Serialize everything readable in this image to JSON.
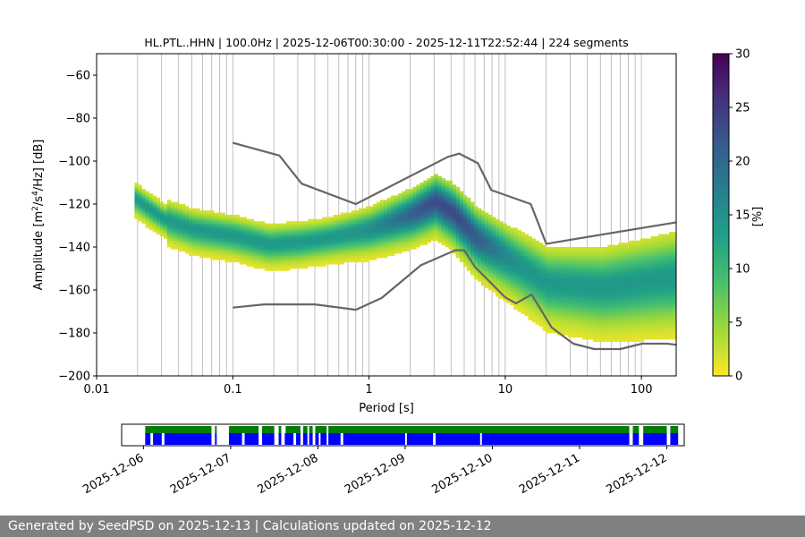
{
  "footer": {
    "text": "Generated by SeedPSD on 2025-12-13 | Calculations updated on 2025-12-12"
  },
  "chart_data": [
    {
      "type": "heatmap",
      "title": "HL.PTL..HHN | 100.0Hz | 2025-12-06T00:30:00 - 2025-12-11T22:52:44 | 224 segments",
      "xlabel": "Period [s]",
      "ylabel_parts": {
        "pre": "Amplitude [m",
        "exp1": "2",
        "mid": "/s",
        "exp2": "4",
        "post": "/Hz] [dB]"
      },
      "xscale": "log",
      "xlim": [
        0.01,
        180
      ],
      "ylim": [
        -200,
        -50
      ],
      "xticks": [
        {
          "value": 0.01,
          "label": "0.01"
        },
        {
          "value": 0.1,
          "label": "0.1"
        },
        {
          "value": 1,
          "label": "1"
        },
        {
          "value": 10,
          "label": "10"
        },
        {
          "value": 100,
          "label": "100"
        }
      ],
      "yticks": [
        {
          "value": -60,
          "label": "−60"
        },
        {
          "value": -80,
          "label": "−80"
        },
        {
          "value": -100,
          "label": "−100"
        },
        {
          "value": -120,
          "label": "−120"
        },
        {
          "value": -140,
          "label": "−140"
        },
        {
          "value": -160,
          "label": "−160"
        },
        {
          "value": -180,
          "label": "−180"
        },
        {
          "value": -200,
          "label": "−200"
        }
      ],
      "grid": "vertical, log minor",
      "colorbar": {
        "label": "[%]",
        "range": [
          0,
          30
        ],
        "ticks": [
          {
            "value": 0,
            "label": "0"
          },
          {
            "value": 5,
            "label": "5"
          },
          {
            "value": 10,
            "label": "10"
          },
          {
            "value": 15,
            "label": "15"
          },
          {
            "value": 20,
            "label": "20"
          },
          {
            "value": 25,
            "label": "25"
          },
          {
            "value": 30,
            "label": "30"
          }
        ],
        "colormap": "viridis_r",
        "stops": [
          "#fde725",
          "#a0da39",
          "#4ac16d",
          "#1fa187",
          "#277f8e",
          "#365c8d",
          "#46327e",
          "#440154"
        ]
      },
      "reference_curves": [
        {
          "name": "upper",
          "color": "#666666",
          "points": [
            [
              0.1,
              -91.5
            ],
            [
              0.22,
              -97.4
            ],
            [
              0.32,
              -110.5
            ],
            [
              0.8,
              -120
            ],
            [
              3.8,
              -98
            ],
            [
              4.6,
              -96.5
            ],
            [
              6.3,
              -101
            ],
            [
              7.9,
              -113.5
            ],
            [
              15.4,
              -120
            ],
            [
              20,
              -138.5
            ],
            [
              180,
              -128.5
            ]
          ]
        },
        {
          "name": "lower",
          "color": "#666666",
          "points": [
            [
              0.1,
              -168.2
            ],
            [
              0.17,
              -166.7
            ],
            [
              0.4,
              -166.7
            ],
            [
              0.8,
              -169.2
            ],
            [
              1.24,
              -163.7
            ],
            [
              2.4,
              -148.5
            ],
            [
              4.3,
              -141.5
            ],
            [
              5.0,
              -141.5
            ],
            [
              6.0,
              -149.3
            ],
            [
              10,
              -163.4
            ],
            [
              12,
              -166.2
            ],
            [
              15.6,
              -162.1
            ],
            [
              21.9,
              -177.4
            ],
            [
              31.6,
              -185
            ],
            [
              45,
              -187.5
            ],
            [
              70,
              -187.5
            ],
            [
              101,
              -185
            ],
            [
              154,
              -185
            ],
            [
              180,
              -185.5
            ]
          ]
        }
      ],
      "psd_mode": {
        "description_values": "dominant noise level in dB vs period in s",
        "period_range": [
          0.019,
          180
        ],
        "points": [
          [
            0.019,
            -118
          ],
          [
            0.03,
            -127
          ],
          [
            0.05,
            -132
          ],
          [
            0.1,
            -135
          ],
          [
            0.18,
            -139
          ],
          [
            0.3,
            -138
          ],
          [
            0.5,
            -136
          ],
          [
            1,
            -132
          ],
          [
            2,
            -125
          ],
          [
            3,
            -119
          ],
          [
            4,
            -124
          ],
          [
            6,
            -136
          ],
          [
            10,
            -145
          ],
          [
            20,
            -157
          ],
          [
            50,
            -159
          ],
          [
            180,
            -154
          ]
        ]
      }
    },
    {
      "type": "timeline",
      "x_start": "2025-12-06",
      "x_end": "2025-12-12",
      "xlim_days": [
        -0.25,
        6.2
      ],
      "xticks": [
        {
          "value": 0,
          "label": "2025-12-06"
        },
        {
          "value": 1,
          "label": "2025-12-07"
        },
        {
          "value": 2,
          "label": "2025-12-08"
        },
        {
          "value": 3,
          "label": "2025-12-09"
        },
        {
          "value": 4,
          "label": "2025-12-10"
        },
        {
          "value": 5,
          "label": "2025-12-11"
        },
        {
          "value": 6,
          "label": "2025-12-12"
        }
      ],
      "rows": [
        {
          "name": "data",
          "color": "#008000",
          "segments": [
            [
              0.02,
              0.78
            ],
            [
              0.82,
              0.84
            ],
            [
              0.98,
              1.32
            ],
            [
              1.36,
              1.5
            ],
            [
              1.55,
              1.58
            ],
            [
              1.63,
              1.8
            ],
            [
              1.83,
              1.88
            ],
            [
              1.9,
              1.94
            ],
            [
              1.97,
              2.1
            ],
            [
              2.12,
              5.57
            ],
            [
              5.61,
              5.68
            ],
            [
              5.73,
              6.0
            ],
            [
              6.04,
              6.13
            ]
          ]
        },
        {
          "name": "psd",
          "color": "#0000ff",
          "segments": [
            [
              0.02,
              0.08
            ],
            [
              0.11,
              0.21
            ],
            [
              0.24,
              0.78
            ],
            [
              0.82,
              0.84
            ],
            [
              0.98,
              1.13
            ],
            [
              1.16,
              1.32
            ],
            [
              1.36,
              1.5
            ],
            [
              1.55,
              1.58
            ],
            [
              1.62,
              1.72
            ],
            [
              1.75,
              1.8
            ],
            [
              1.83,
              1.88
            ],
            [
              1.9,
              1.94
            ],
            [
              1.97,
              2.01
            ],
            [
              2.03,
              2.1
            ],
            [
              2.12,
              2.26
            ],
            [
              2.29,
              3.0
            ],
            [
              3.02,
              3.32
            ],
            [
              3.35,
              3.86
            ],
            [
              3.88,
              5.57
            ],
            [
              5.61,
              5.68
            ],
            [
              5.73,
              6.0
            ],
            [
              6.04,
              6.13
            ]
          ]
        }
      ]
    }
  ]
}
